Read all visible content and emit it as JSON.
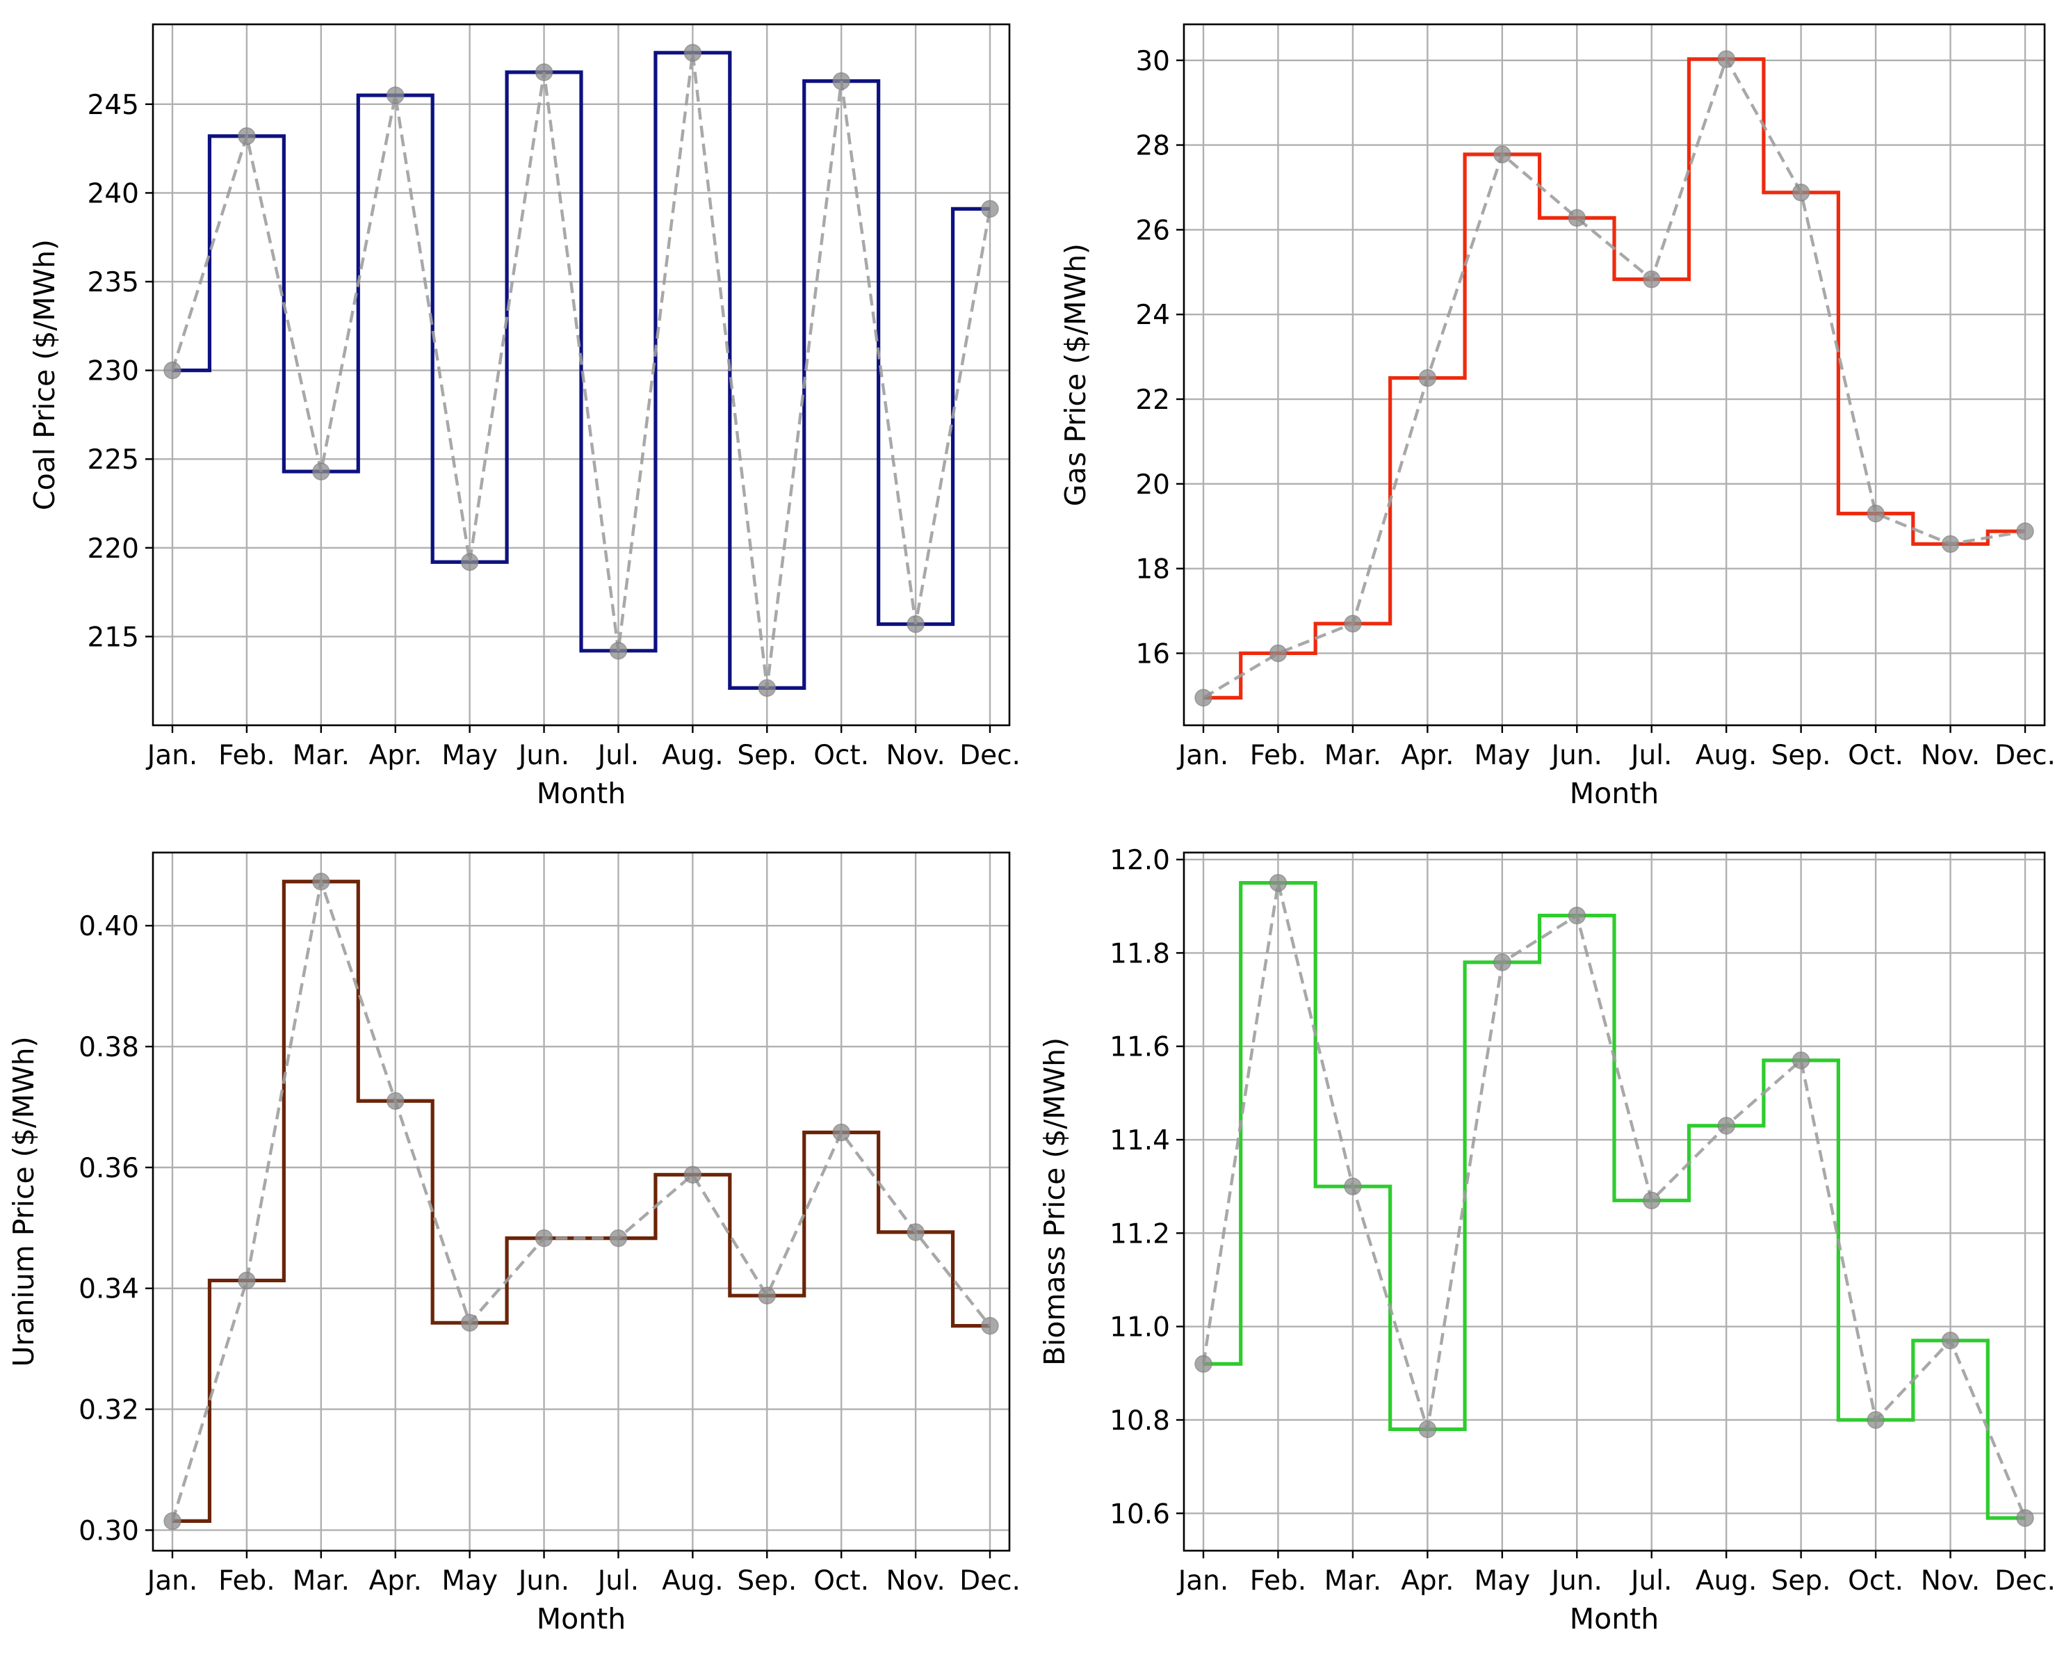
{
  "figure": {
    "months": [
      "Jan.",
      "Feb.",
      "Mar.",
      "Apr.",
      "May",
      "Jun.",
      "Jul.",
      "Aug.",
      "Sep.",
      "Oct.",
      "Nov.",
      "Dec."
    ],
    "xlabel": "Month",
    "connector_color": "#9e9e9e",
    "marker_color": "#8c8c8c"
  },
  "chart_data": [
    {
      "id": "coal",
      "type": "line",
      "step": "mid",
      "title": "",
      "xlabel": "Month",
      "ylabel": "Coal Price ($/MWh)",
      "color": "#0d1180",
      "ylim": [
        210.0,
        249.5
      ],
      "yticks": [
        215,
        220,
        225,
        230,
        235,
        240,
        245
      ],
      "ytick_labels": [
        "215",
        "220",
        "225",
        "230",
        "235",
        "240",
        "245"
      ],
      "categories": [
        "Jan.",
        "Feb.",
        "Mar.",
        "Apr.",
        "May",
        "Jun.",
        "Jul.",
        "Aug.",
        "Sep.",
        "Oct.",
        "Nov.",
        "Dec."
      ],
      "values": [
        230.0,
        243.2,
        224.3,
        245.5,
        219.2,
        246.8,
        214.2,
        247.9,
        212.1,
        246.3,
        215.7,
        239.1
      ]
    },
    {
      "id": "gas",
      "type": "line",
      "step": "mid",
      "title": "",
      "xlabel": "Month",
      "ylabel": "Gas Price ($/MWh)",
      "color": "#ee2a0e",
      "ylim": [
        14.3,
        30.85
      ],
      "yticks": [
        16,
        18,
        20,
        22,
        24,
        26,
        28,
        30
      ],
      "ytick_labels": [
        "16",
        "18",
        "20",
        "22",
        "24",
        "26",
        "28",
        "30"
      ],
      "categories": [
        "Jan.",
        "Feb.",
        "Mar.",
        "Apr.",
        "May",
        "Jun.",
        "Jul.",
        "Aug.",
        "Sep.",
        "Oct.",
        "Nov.",
        "Dec."
      ],
      "values": [
        14.95,
        16.0,
        16.7,
        22.5,
        27.78,
        26.28,
        24.83,
        30.03,
        26.88,
        19.3,
        18.58,
        18.88
      ]
    },
    {
      "id": "uranium",
      "type": "line",
      "step": "mid",
      "title": "",
      "xlabel": "Month",
      "ylabel": "Uranium Price ($/MWh)",
      "color": "#6b2408",
      "ylim": [
        0.2966,
        0.4121
      ],
      "yticks": [
        0.3,
        0.32,
        0.34,
        0.36,
        0.38,
        0.4
      ],
      "ytick_labels": [
        "0.30",
        "0.32",
        "0.34",
        "0.36",
        "0.38",
        "0.40"
      ],
      "categories": [
        "Jan.",
        "Feb.",
        "Mar.",
        "Apr.",
        "May",
        "Jun.",
        "Jul.",
        "Aug.",
        "Sep.",
        "Oct.",
        "Nov.",
        "Dec."
      ],
      "values": [
        0.3015,
        0.3413,
        0.4073,
        0.371,
        0.3343,
        0.3483,
        0.3483,
        0.3588,
        0.3388,
        0.3658,
        0.3493,
        0.3338
      ]
    },
    {
      "id": "biomass",
      "type": "line",
      "step": "mid",
      "title": "",
      "xlabel": "Month",
      "ylabel": "Biomass Price ($/MWh)",
      "color": "#2ecc2e",
      "ylim": [
        10.52,
        12.015
      ],
      "yticks": [
        10.6,
        10.8,
        11.0,
        11.2,
        11.4,
        11.6,
        11.8,
        12.0
      ],
      "ytick_labels": [
        "10.6",
        "10.8",
        "11.0",
        "11.2",
        "11.4",
        "11.6",
        "11.8",
        "12.0"
      ],
      "categories": [
        "Jan.",
        "Feb.",
        "Mar.",
        "Apr.",
        "May",
        "Jun.",
        "Jul.",
        "Aug.",
        "Sep.",
        "Oct.",
        "Nov.",
        "Dec."
      ],
      "values": [
        10.92,
        11.95,
        11.3,
        10.78,
        11.78,
        11.88,
        11.27,
        11.43,
        11.57,
        10.8,
        10.97,
        10.59
      ]
    }
  ]
}
